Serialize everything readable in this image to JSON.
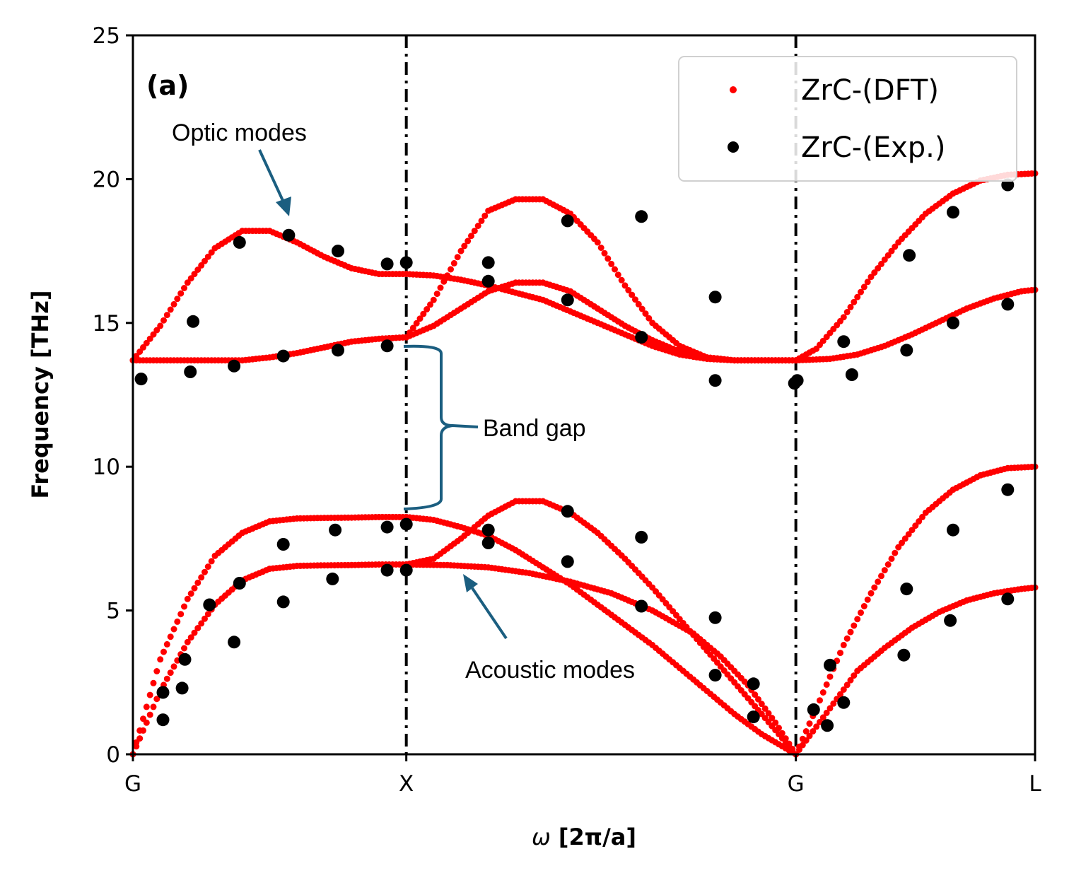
{
  "chart_data": {
    "type": "scatter",
    "panel_label": "(a)",
    "xlabel_symbol": "ω",
    "xlabel_rest": " [2π/a]",
    "ylabel": "Frequency [THz]",
    "ylim": [
      0,
      25
    ],
    "yticks": [
      "0",
      "5",
      "10",
      "15",
      "20",
      "25"
    ],
    "xlim": [
      0,
      3.3
    ],
    "xticks": [
      {
        "label": "G",
        "value": 0
      },
      {
        "label": "X",
        "value": 1
      },
      {
        "label": "G",
        "value": 2.425
      },
      {
        "label": "L",
        "value": 3.3
      }
    ],
    "vlines_at": [
      1,
      2.425
    ],
    "legend_position": "top-right",
    "grid": false,
    "colors": {
      "dft": "#ff0000",
      "exp": "#000000",
      "annotation": "#1b5e80"
    },
    "series": [
      {
        "name": "ZrC-(DFT)",
        "color": "#ff0000",
        "branches": [
          {
            "segment": "G-X",
            "points": [
              [
                0,
                0
              ],
              [
                0.1,
                2.2
              ],
              [
                0.2,
                3.9
              ],
              [
                0.3,
                5.2
              ],
              [
                0.4,
                6.05
              ],
              [
                0.5,
                6.45
              ],
              [
                0.6,
                6.55
              ],
              [
                0.7,
                6.57
              ],
              [
                0.8,
                6.58
              ],
              [
                0.9,
                6.6
              ],
              [
                1,
                6.6
              ]
            ]
          },
          {
            "segment": "G-X",
            "points": [
              [
                0,
                0
              ],
              [
                0.1,
                3.3
              ],
              [
                0.2,
                5.4
              ],
              [
                0.3,
                6.9
              ],
              [
                0.4,
                7.7
              ],
              [
                0.5,
                8.1
              ],
              [
                0.6,
                8.2
              ],
              [
                0.7,
                8.22
              ],
              [
                0.8,
                8.23
              ],
              [
                0.9,
                8.25
              ],
              [
                1,
                8.25
              ]
            ]
          },
          {
            "segment": "G-X",
            "points": [
              [
                0,
                13.7
              ],
              [
                0.1,
                14.9
              ],
              [
                0.2,
                16.4
              ],
              [
                0.3,
                17.6
              ],
              [
                0.4,
                18.2
              ],
              [
                0.5,
                18.2
              ],
              [
                0.6,
                17.8
              ],
              [
                0.7,
                17.3
              ],
              [
                0.8,
                16.9
              ],
              [
                0.9,
                16.7
              ],
              [
                1,
                16.7
              ]
            ]
          },
          {
            "segment": "G-X",
            "points": [
              [
                0,
                13.7
              ],
              [
                0.1,
                13.7
              ],
              [
                0.2,
                13.7
              ],
              [
                0.3,
                13.7
              ],
              [
                0.4,
                13.7
              ],
              [
                0.5,
                13.8
              ],
              [
                0.6,
                13.95
              ],
              [
                0.7,
                14.15
              ],
              [
                0.8,
                14.35
              ],
              [
                0.9,
                14.45
              ],
              [
                1,
                14.5
              ]
            ]
          },
          {
            "segment": "X-G",
            "points": [
              [
                1,
                6.6
              ],
              [
                1.15,
                6.58
              ],
              [
                1.3,
                6.5
              ],
              [
                1.45,
                6.3
              ],
              [
                1.6,
                6.0
              ],
              [
                1.75,
                5.6
              ],
              [
                1.9,
                5.0
              ],
              [
                2.05,
                4.2
              ],
              [
                2.15,
                3.4
              ],
              [
                2.25,
                2.4
              ],
              [
                2.35,
                1.1
              ],
              [
                2.425,
                0
              ]
            ]
          },
          {
            "segment": "X-G",
            "points": [
              [
                1,
                6.6
              ],
              [
                1.1,
                6.8
              ],
              [
                1.2,
                7.5
              ],
              [
                1.3,
                8.3
              ],
              [
                1.4,
                8.8
              ],
              [
                1.5,
                8.8
              ],
              [
                1.6,
                8.4
              ],
              [
                1.7,
                7.7
              ],
              [
                1.8,
                6.8
              ],
              [
                1.9,
                5.8
              ],
              [
                2.0,
                4.7
              ],
              [
                2.1,
                3.6
              ],
              [
                2.2,
                2.5
              ],
              [
                2.3,
                1.4
              ],
              [
                2.425,
                0
              ]
            ]
          },
          {
            "segment": "X-G",
            "points": [
              [
                1,
                8.25
              ],
              [
                1.1,
                8.15
              ],
              [
                1.2,
                7.9
              ],
              [
                1.3,
                7.6
              ],
              [
                1.4,
                7.1
              ],
              [
                1.5,
                6.5
              ],
              [
                1.6,
                5.9
              ],
              [
                1.7,
                5.2
              ],
              [
                1.8,
                4.5
              ],
              [
                1.9,
                3.8
              ],
              [
                2.0,
                3.0
              ],
              [
                2.1,
                2.2
              ],
              [
                2.2,
                1.4
              ],
              [
                2.3,
                0.7
              ],
              [
                2.425,
                0
              ]
            ]
          },
          {
            "segment": "X-G",
            "points": [
              [
                1,
                16.7
              ],
              [
                1.1,
                16.65
              ],
              [
                1.2,
                16.5
              ],
              [
                1.3,
                16.3
              ],
              [
                1.4,
                16.05
              ],
              [
                1.5,
                15.8
              ],
              [
                1.6,
                15.4
              ],
              [
                1.7,
                15.0
              ],
              [
                1.8,
                14.6
              ],
              [
                1.9,
                14.2
              ],
              [
                2.0,
                13.9
              ],
              [
                2.1,
                13.75
              ],
              [
                2.2,
                13.7
              ],
              [
                2.3,
                13.7
              ],
              [
                2.425,
                13.7
              ]
            ]
          },
          {
            "segment": "X-G",
            "points": [
              [
                1,
                14.5
              ],
              [
                1.1,
                14.9
              ],
              [
                1.2,
                15.5
              ],
              [
                1.3,
                16.1
              ],
              [
                1.4,
                16.4
              ],
              [
                1.5,
                16.4
              ],
              [
                1.6,
                16.1
              ],
              [
                1.7,
                15.5
              ],
              [
                1.8,
                14.9
              ],
              [
                1.9,
                14.4
              ],
              [
                2.0,
                14.0
              ],
              [
                2.1,
                13.8
              ],
              [
                2.2,
                13.7
              ],
              [
                2.3,
                13.7
              ],
              [
                2.425,
                13.7
              ]
            ]
          },
          {
            "segment": "X-G",
            "points": [
              [
                1,
                14.5
              ],
              [
                1.1,
                15.8
              ],
              [
                1.2,
                17.5
              ],
              [
                1.3,
                18.9
              ],
              [
                1.4,
                19.3
              ],
              [
                1.5,
                19.3
              ],
              [
                1.6,
                18.8
              ],
              [
                1.7,
                17.8
              ],
              [
                1.8,
                16.3
              ],
              [
                1.9,
                15.0
              ],
              [
                2.0,
                14.2
              ],
              [
                2.1,
                13.8
              ],
              [
                2.2,
                13.7
              ],
              [
                2.3,
                13.7
              ],
              [
                2.425,
                13.7
              ]
            ]
          },
          {
            "segment": "G-L",
            "points": [
              [
                2.425,
                0
              ],
              [
                2.55,
                1.6
              ],
              [
                2.65,
                2.9
              ],
              [
                2.75,
                3.7
              ],
              [
                2.85,
                4.4
              ],
              [
                2.95,
                4.95
              ],
              [
                3.05,
                5.35
              ],
              [
                3.15,
                5.6
              ],
              [
                3.25,
                5.75
              ],
              [
                3.3,
                5.8
              ]
            ]
          },
          {
            "segment": "G-L",
            "points": [
              [
                2.425,
                0
              ],
              [
                2.5,
                1.6
              ],
              [
                2.6,
                3.8
              ],
              [
                2.7,
                5.6
              ],
              [
                2.8,
                7.2
              ],
              [
                2.9,
                8.4
              ],
              [
                3.0,
                9.2
              ],
              [
                3.1,
                9.7
              ],
              [
                3.2,
                9.95
              ],
              [
                3.3,
                10.0
              ]
            ]
          },
          {
            "segment": "G-L",
            "points": [
              [
                2.425,
                13.7
              ],
              [
                2.55,
                13.75
              ],
              [
                2.65,
                13.9
              ],
              [
                2.75,
                14.2
              ],
              [
                2.85,
                14.6
              ],
              [
                2.95,
                15.05
              ],
              [
                3.05,
                15.5
              ],
              [
                3.15,
                15.85
              ],
              [
                3.25,
                16.1
              ],
              [
                3.3,
                16.15
              ]
            ]
          },
          {
            "segment": "G-L",
            "points": [
              [
                2.425,
                13.7
              ],
              [
                2.5,
                14.1
              ],
              [
                2.6,
                15.2
              ],
              [
                2.7,
                16.6
              ],
              [
                2.8,
                17.8
              ],
              [
                2.9,
                18.8
              ],
              [
                3.0,
                19.5
              ],
              [
                3.1,
                19.95
              ],
              [
                3.2,
                20.15
              ],
              [
                3.3,
                20.2
              ]
            ]
          }
        ]
      },
      {
        "name": "ZrC-(Exp.)",
        "color": "#000000",
        "points": [
          [
            0.03,
            13.05
          ],
          [
            0.11,
            1.2
          ],
          [
            0.11,
            2.15
          ],
          [
            0.18,
            2.3
          ],
          [
            0.19,
            3.3
          ],
          [
            0.21,
            13.3
          ],
          [
            0.22,
            15.05
          ],
          [
            0.28,
            5.2
          ],
          [
            0.37,
            3.9
          ],
          [
            0.37,
            13.5
          ],
          [
            0.39,
            17.8
          ],
          [
            0.39,
            5.95
          ],
          [
            0.55,
            5.3
          ],
          [
            0.55,
            7.3
          ],
          [
            0.55,
            13.85
          ],
          [
            0.57,
            18.05
          ],
          [
            0.73,
            6.1
          ],
          [
            0.74,
            7.8
          ],
          [
            0.75,
            14.05
          ],
          [
            0.75,
            17.5
          ],
          [
            0.93,
            6.4
          ],
          [
            0.93,
            7.9
          ],
          [
            0.93,
            14.2
          ],
          [
            0.93,
            17.05
          ],
          [
            1.0,
            6.4
          ],
          [
            1.0,
            8.0
          ],
          [
            1.0,
            17.1
          ],
          [
            1.3,
            7.35
          ],
          [
            1.3,
            7.8
          ],
          [
            1.3,
            16.45
          ],
          [
            1.3,
            17.1
          ],
          [
            1.59,
            6.7
          ],
          [
            1.59,
            8.45
          ],
          [
            1.59,
            15.8
          ],
          [
            1.59,
            18.55
          ],
          [
            1.86,
            5.15
          ],
          [
            1.86,
            7.55
          ],
          [
            1.86,
            14.5
          ],
          [
            1.86,
            18.7
          ],
          [
            2.13,
            2.75
          ],
          [
            2.13,
            4.75
          ],
          [
            2.13,
            13.0
          ],
          [
            2.13,
            15.9
          ],
          [
            2.27,
            1.3
          ],
          [
            2.27,
            2.45
          ],
          [
            2.42,
            12.9
          ],
          [
            2.43,
            13.0
          ],
          [
            2.49,
            1.55
          ],
          [
            2.54,
            1.0
          ],
          [
            2.55,
            3.1
          ],
          [
            2.6,
            1.8
          ],
          [
            2.6,
            14.35
          ],
          [
            2.63,
            13.2
          ],
          [
            2.82,
            3.45
          ],
          [
            2.83,
            5.75
          ],
          [
            2.83,
            14.05
          ],
          [
            2.84,
            17.35
          ],
          [
            2.99,
            4.65
          ],
          [
            3.0,
            7.8
          ],
          [
            3.0,
            15.0
          ],
          [
            3.0,
            18.85
          ],
          [
            3.2,
            5.4
          ],
          [
            3.2,
            9.2
          ],
          [
            3.2,
            15.65
          ],
          [
            3.2,
            19.8
          ]
        ]
      }
    ],
    "annotations": [
      {
        "text": "Optic modes"
      },
      {
        "text": "Band gap"
      },
      {
        "text": "Acoustic modes"
      }
    ]
  }
}
